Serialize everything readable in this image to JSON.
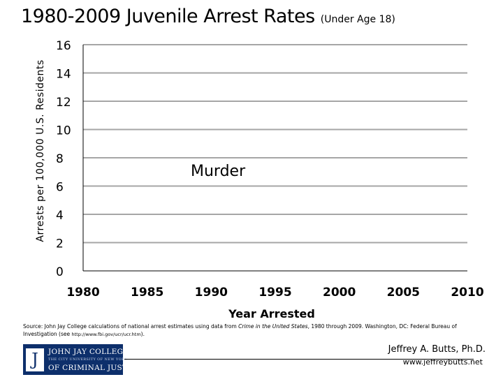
{
  "title": {
    "main": "1980-2009 Juvenile Arrest Rates",
    "sub": "(Under Age 18)"
  },
  "chart_data": {
    "type": "line",
    "title": "1980-2009 Juvenile Arrest Rates (Under Age 18)",
    "xlabel": "Year Arrested",
    "ylabel": "Arrests per 100,000 U.S. Residents",
    "xlim": [
      1980,
      2010
    ],
    "ylim": [
      0,
      16
    ],
    "x_ticks": [
      1980,
      1985,
      1990,
      1995,
      2000,
      2005,
      2010
    ],
    "y_ticks": [
      0,
      2,
      4,
      6,
      8,
      10,
      12,
      14,
      16
    ],
    "grid": "horizontal",
    "annotation": "Murder",
    "series": []
  },
  "source": {
    "prefix": "Source: John Jay College calculations of national arrest estimates using data from ",
    "italic": "Crime in the United States",
    "mid": ", 1980 through 2009. Washington, DC: Federal Bureau of Investigation (see ",
    "url": "http://www.fbi.gov/ucr/ucr.htm",
    "suffix": ")."
  },
  "logo": {
    "line1": "JOHN JAY COLLEGE",
    "line2": "THE CITY UNIVERSITY OF NEW YORK",
    "line3": "OF CRIMINAL JUSTICE"
  },
  "author": "Jeffrey A. Butts, Ph.D.",
  "website": "www.jeffreybutts.net"
}
